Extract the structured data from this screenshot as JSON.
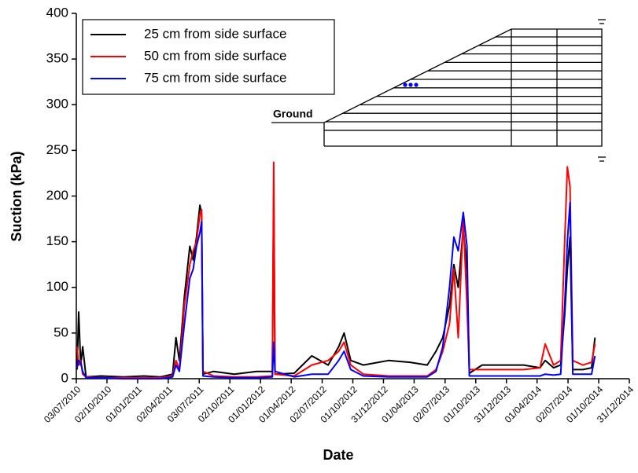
{
  "chart_data": {
    "type": "line",
    "xlabel": "Date",
    "ylabel": "Suction (kPa)",
    "annotations": [
      "Ground"
    ],
    "ylim": [
      0,
      400
    ],
    "yticks": [
      0,
      50,
      100,
      150,
      200,
      250,
      300,
      350,
      400
    ],
    "xlim": [
      "2010-07-03",
      "2014-12-31"
    ],
    "xticks": [
      {
        "value": "2010-07-03",
        "label": "03/07/2010"
      },
      {
        "value": "2010-10-02",
        "label": "02/10/2010"
      },
      {
        "value": "2011-01-01",
        "label": "01/01/2011"
      },
      {
        "value": "2011-04-02",
        "label": "02/04/2011"
      },
      {
        "value": "2011-07-03",
        "label": "03/07/2011"
      },
      {
        "value": "2011-10-02",
        "label": "02/10/2011"
      },
      {
        "value": "2012-01-01",
        "label": "01/01/2012"
      },
      {
        "value": "2012-04-01",
        "label": "01/04/2012"
      },
      {
        "value": "2012-07-02",
        "label": "02/07/2012"
      },
      {
        "value": "2012-10-01",
        "label": "01/10/2012"
      },
      {
        "value": "2012-12-31",
        "label": "31/12/2012"
      },
      {
        "value": "2013-04-01",
        "label": "01/04/2013"
      },
      {
        "value": "2013-07-02",
        "label": "02/07/2013"
      },
      {
        "value": "2013-10-01",
        "label": "01/10/2013"
      },
      {
        "value": "2013-12-31",
        "label": "31/12/2013"
      },
      {
        "value": "2014-04-01",
        "label": "01/04/2014"
      },
      {
        "value": "2014-07-02",
        "label": "02/07/2014"
      },
      {
        "value": "2014-10-01",
        "label": "01/10/2014"
      },
      {
        "value": "2014-12-31",
        "label": "31/12/2014"
      }
    ],
    "x": [
      "2010-07-05",
      "2010-07-10",
      "2010-07-16",
      "2010-07-22",
      "2010-08-01",
      "2010-09-15",
      "2010-11-20",
      "2011-01-20",
      "2011-03-10",
      "2011-04-15",
      "2011-04-25",
      "2011-05-05",
      "2011-05-20",
      "2011-06-05",
      "2011-06-15",
      "2011-06-25",
      "2011-07-05",
      "2011-07-10",
      "2011-07-14",
      "2011-08-15",
      "2011-10-15",
      "2011-12-20",
      "2012-02-05",
      "2012-02-09",
      "2012-02-13",
      "2012-04-10",
      "2012-06-01",
      "2012-07-20",
      "2012-08-20",
      "2012-09-05",
      "2012-09-25",
      "2012-11-01",
      "2013-01-15",
      "2013-03-20",
      "2013-05-10",
      "2013-06-05",
      "2013-06-25",
      "2013-07-15",
      "2013-07-28",
      "2013-08-10",
      "2013-08-25",
      "2013-09-05",
      "2013-09-12",
      "2013-10-20",
      "2013-12-15",
      "2014-02-20",
      "2014-04-10",
      "2014-04-25",
      "2014-05-20",
      "2014-06-10",
      "2014-06-22",
      "2014-06-30",
      "2014-07-08",
      "2014-07-16",
      "2014-08-15",
      "2014-09-10",
      "2014-09-20"
    ],
    "series": [
      {
        "name": "25 cm from side surface",
        "color": "#000000",
        "values": [
          10,
          73,
          15,
          35,
          2,
          3,
          2,
          3,
          2,
          5,
          45,
          20,
          90,
          145,
          130,
          155,
          190,
          180,
          5,
          8,
          5,
          8,
          8,
          200,
          5,
          6,
          25,
          15,
          35,
          50,
          20,
          15,
          20,
          18,
          15,
          30,
          45,
          80,
          125,
          100,
          165,
          120,
          6,
          15,
          15,
          15,
          12,
          20,
          12,
          15,
          70,
          120,
          155,
          10,
          10,
          12,
          45
        ]
      },
      {
        "name": "50 cm from side surface",
        "color": "#ff0000",
        "values": [
          35,
          15,
          20,
          5,
          2,
          1,
          1,
          1,
          1,
          3,
          20,
          10,
          80,
          125,
          140,
          150,
          180,
          185,
          8,
          3,
          2,
          2,
          3,
          237,
          5,
          3,
          15,
          20,
          30,
          40,
          15,
          5,
          3,
          3,
          3,
          10,
          30,
          60,
          120,
          45,
          175,
          80,
          10,
          10,
          10,
          10,
          12,
          38,
          15,
          20,
          150,
          232,
          210,
          20,
          15,
          18,
          38
        ]
      },
      {
        "name": "75 cm from side surface",
        "color": "#0000ff",
        "values": [
          12,
          20,
          18,
          8,
          1,
          1,
          0,
          0,
          0,
          2,
          15,
          8,
          60,
          110,
          120,
          145,
          160,
          172,
          3,
          2,
          1,
          1,
          2,
          40,
          8,
          2,
          5,
          5,
          20,
          30,
          10,
          3,
          2,
          2,
          2,
          8,
          35,
          100,
          155,
          140,
          182,
          145,
          3,
          3,
          3,
          3,
          3,
          5,
          4,
          5,
          80,
          150,
          193,
          5,
          5,
          5,
          25
        ]
      }
    ]
  }
}
